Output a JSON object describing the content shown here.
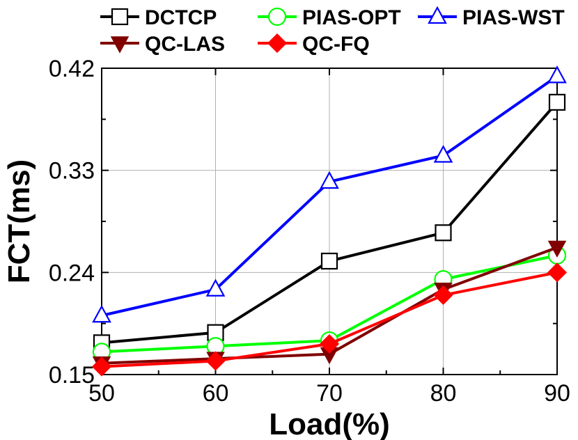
{
  "chart_data": {
    "type": "line",
    "xlabel": "Load(%)",
    "ylabel": "FCT(ms)",
    "x": [
      50,
      60,
      70,
      80,
      90
    ],
    "xticks": [
      "50",
      "60",
      "70",
      "80",
      "90"
    ],
    "yticks": [
      "0.15",
      "0.24",
      "0.33",
      "0.42"
    ],
    "xlim": [
      50,
      90
    ],
    "ylim": [
      0.15,
      0.42
    ],
    "grid": true,
    "legend_position": "top",
    "series": [
      {
        "name": "DCTCP",
        "color": "#000000",
        "marker": "square",
        "values": [
          0.178,
          0.187,
          0.25,
          0.275,
          0.39
        ]
      },
      {
        "name": "PIAS-OPT",
        "color": "#00ff00",
        "marker": "circle",
        "values": [
          0.17,
          0.175,
          0.18,
          0.234,
          0.255
        ]
      },
      {
        "name": "PIAS-WST",
        "color": "#0000ff",
        "marker": "triangle-up",
        "values": [
          0.202,
          0.225,
          0.32,
          0.343,
          0.413
        ]
      },
      {
        "name": "QC-LAS",
        "color": "#800000",
        "marker": "triangle-down",
        "values": [
          0.16,
          0.164,
          0.168,
          0.225,
          0.262
        ]
      },
      {
        "name": "QC-FQ",
        "color": "#ff0000",
        "marker": "diamond",
        "values": [
          0.157,
          0.162,
          0.177,
          0.22,
          0.24
        ]
      }
    ]
  }
}
